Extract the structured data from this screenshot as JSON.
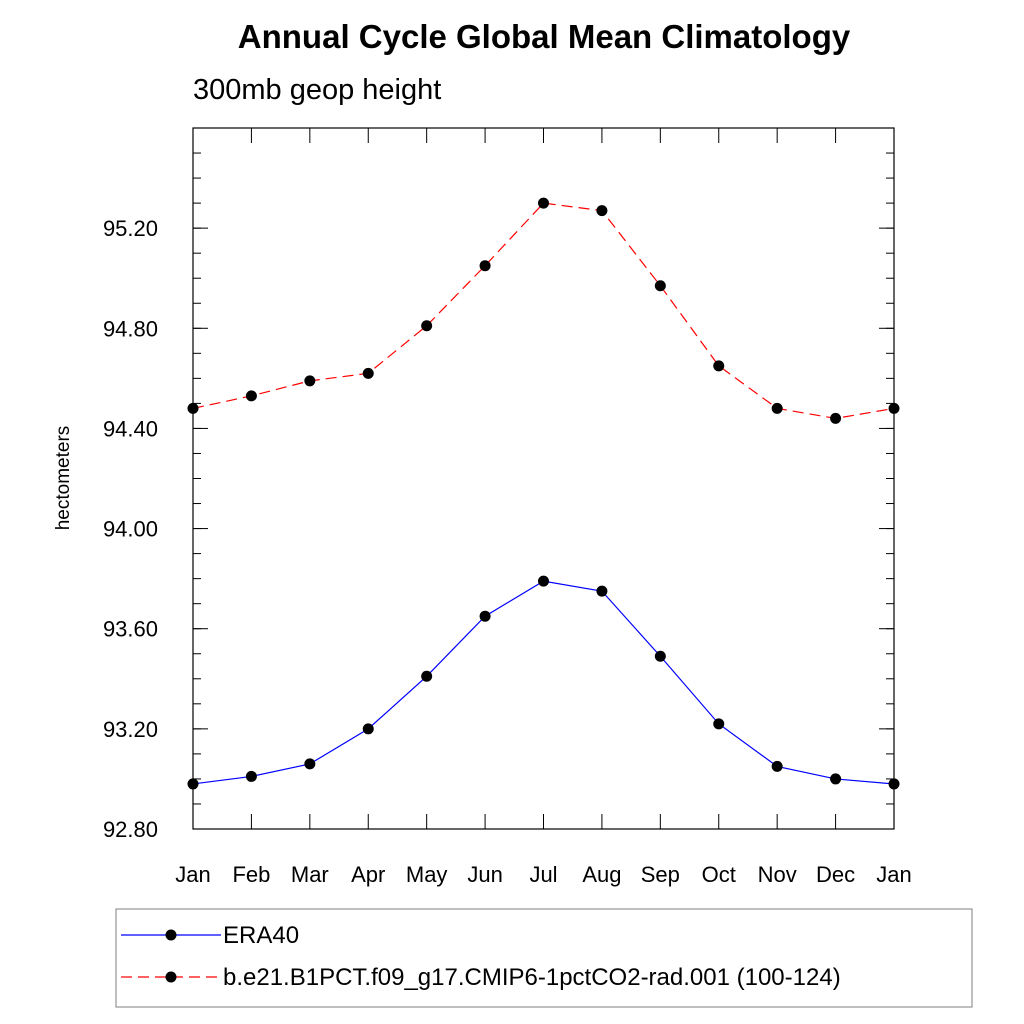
{
  "chart_data": {
    "type": "line",
    "title": "Annual Cycle Global Mean Climatology",
    "subtitle": "300mb geop height",
    "xlabel": "",
    "ylabel": "hectometers",
    "categories": [
      "Jan",
      "Feb",
      "Mar",
      "Apr",
      "May",
      "Jun",
      "Jul",
      "Aug",
      "Sep",
      "Oct",
      "Nov",
      "Dec",
      "Jan"
    ],
    "ylim": [
      92.8,
      95.6
    ],
    "yticks": [
      "92.80",
      "93.20",
      "93.60",
      "94.00",
      "94.40",
      "94.80",
      "95.20"
    ],
    "ytick_values": [
      92.8,
      93.2,
      93.6,
      94.0,
      94.4,
      94.8,
      95.2
    ],
    "grid": false,
    "legend_position": "bottom",
    "series": [
      {
        "name": "ERA40",
        "color": "#0000ff",
        "dash": "solid",
        "marker": "filled-circle",
        "values": [
          92.98,
          93.01,
          93.06,
          93.2,
          93.41,
          93.65,
          93.79,
          93.75,
          93.49,
          93.22,
          93.05,
          93.0,
          92.98
        ]
      },
      {
        "name": "b.e21.B1PCT.f09_g17.CMIP6-1pctCO2-rad.001 (100-124)",
        "color": "#ff0000",
        "dash": "dashed",
        "marker": "filled-circle",
        "values": [
          94.48,
          94.53,
          94.59,
          94.62,
          94.81,
          95.05,
          95.3,
          95.27,
          94.97,
          94.65,
          94.48,
          94.44,
          94.48
        ]
      }
    ]
  }
}
